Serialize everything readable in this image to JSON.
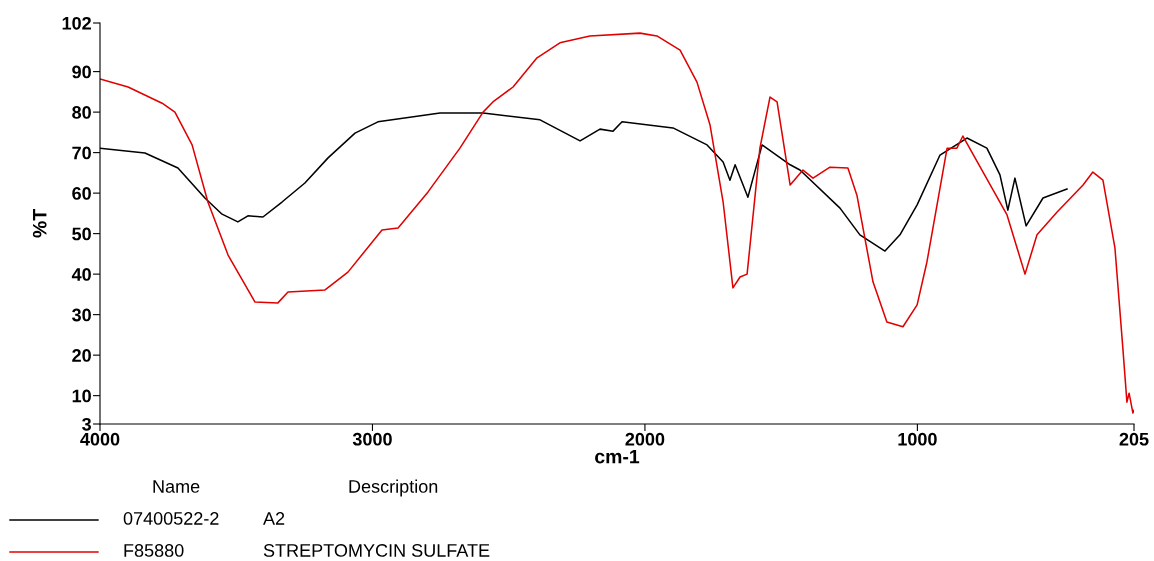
{
  "chart_data": {
    "type": "line",
    "xlabel": "cm-1",
    "ylabel": "%T",
    "xlim": [
      4000,
      205
    ],
    "xticks": [
      4000,
      3000,
      2000,
      1000,
      205
    ],
    "ylim": [
      3,
      102
    ],
    "yticks": [
      3,
      10,
      20,
      30,
      40,
      50,
      60,
      70,
      80,
      90,
      102
    ],
    "grid": false,
    "legend": "bottom left",
    "legend_title": "Name",
    "marker": "none",
    "line_style": "solid",
    "annotations": [
      "Description",
      "A2",
      "STREPTOMYCIN SULFATE"
    ],
    "series": [
      {
        "name": "07400522-2",
        "color": "#000000",
        "x": [
          4000,
          3835,
          3714,
          3615,
          3552,
          3494,
          3457,
          3402,
          3332,
          3248,
          3163,
          3064,
          2980,
          2752,
          2594,
          2385,
          2238,
          2165,
          2117,
          2084,
          1897,
          1772,
          1713,
          1688,
          1669,
          1622,
          1570,
          1467,
          1431,
          1284,
          1211,
          1119,
          1064,
          1001,
          917,
          818,
          745,
          697,
          668,
          642,
          601,
          539,
          451
        ],
        "values": [
          71.1,
          69.9,
          66.2,
          58.8,
          54.8,
          52.9,
          54.4,
          54.1,
          57.8,
          62.5,
          68.7,
          74.8,
          77.6,
          79.8,
          79.8,
          78.1,
          72.9,
          75.8,
          75.3,
          77.6,
          76.1,
          71.9,
          67.7,
          63.2,
          67.0,
          59.0,
          71.9,
          67.0,
          65.7,
          56.3,
          49.7,
          45.7,
          49.7,
          57.1,
          69.4,
          73.6,
          71.1,
          64.5,
          55.8,
          63.7,
          51.9,
          58.8,
          61.0
        ]
      },
      {
        "name": "F85880",
        "color": "#e00000",
        "x": [
          4000,
          3897,
          3772,
          3725,
          3662,
          3604,
          3530,
          3431,
          3347,
          3310,
          3174,
          3090,
          2965,
          2906,
          2796,
          2679,
          2594,
          2558,
          2484,
          2396,
          2312,
          2202,
          2018,
          1956,
          1871,
          1809,
          1761,
          1713,
          1677,
          1651,
          1625,
          1578,
          1541,
          1515,
          1467,
          1420,
          1383,
          1321,
          1255,
          1222,
          1163,
          1112,
          1053,
          1001,
          965,
          891,
          855,
          833,
          759,
          671,
          605,
          561,
          488,
          392,
          356,
          319,
          275,
          246,
          231,
          223,
          209,
          205
        ],
        "values": [
          88.2,
          86.2,
          82.2,
          80.0,
          71.9,
          57.8,
          44.7,
          33.1,
          32.9,
          35.6,
          36.1,
          40.5,
          50.9,
          51.4,
          60.3,
          71.1,
          80.0,
          82.5,
          86.2,
          93.4,
          97.1,
          98.8,
          99.5,
          98.8,
          95.3,
          87.4,
          76.8,
          57.8,
          36.6,
          39.3,
          40.0,
          71.1,
          83.7,
          82.5,
          62.0,
          65.7,
          63.7,
          66.4,
          66.2,
          59.5,
          38.1,
          28.2,
          27.0,
          32.4,
          43.0,
          71.1,
          71.1,
          74.1,
          65.2,
          54.6,
          40.0,
          49.7,
          55.3,
          62.0,
          65.2,
          63.2,
          46.5,
          21.8,
          8.4,
          10.6,
          5.7,
          6.4
        ]
      }
    ]
  }
}
